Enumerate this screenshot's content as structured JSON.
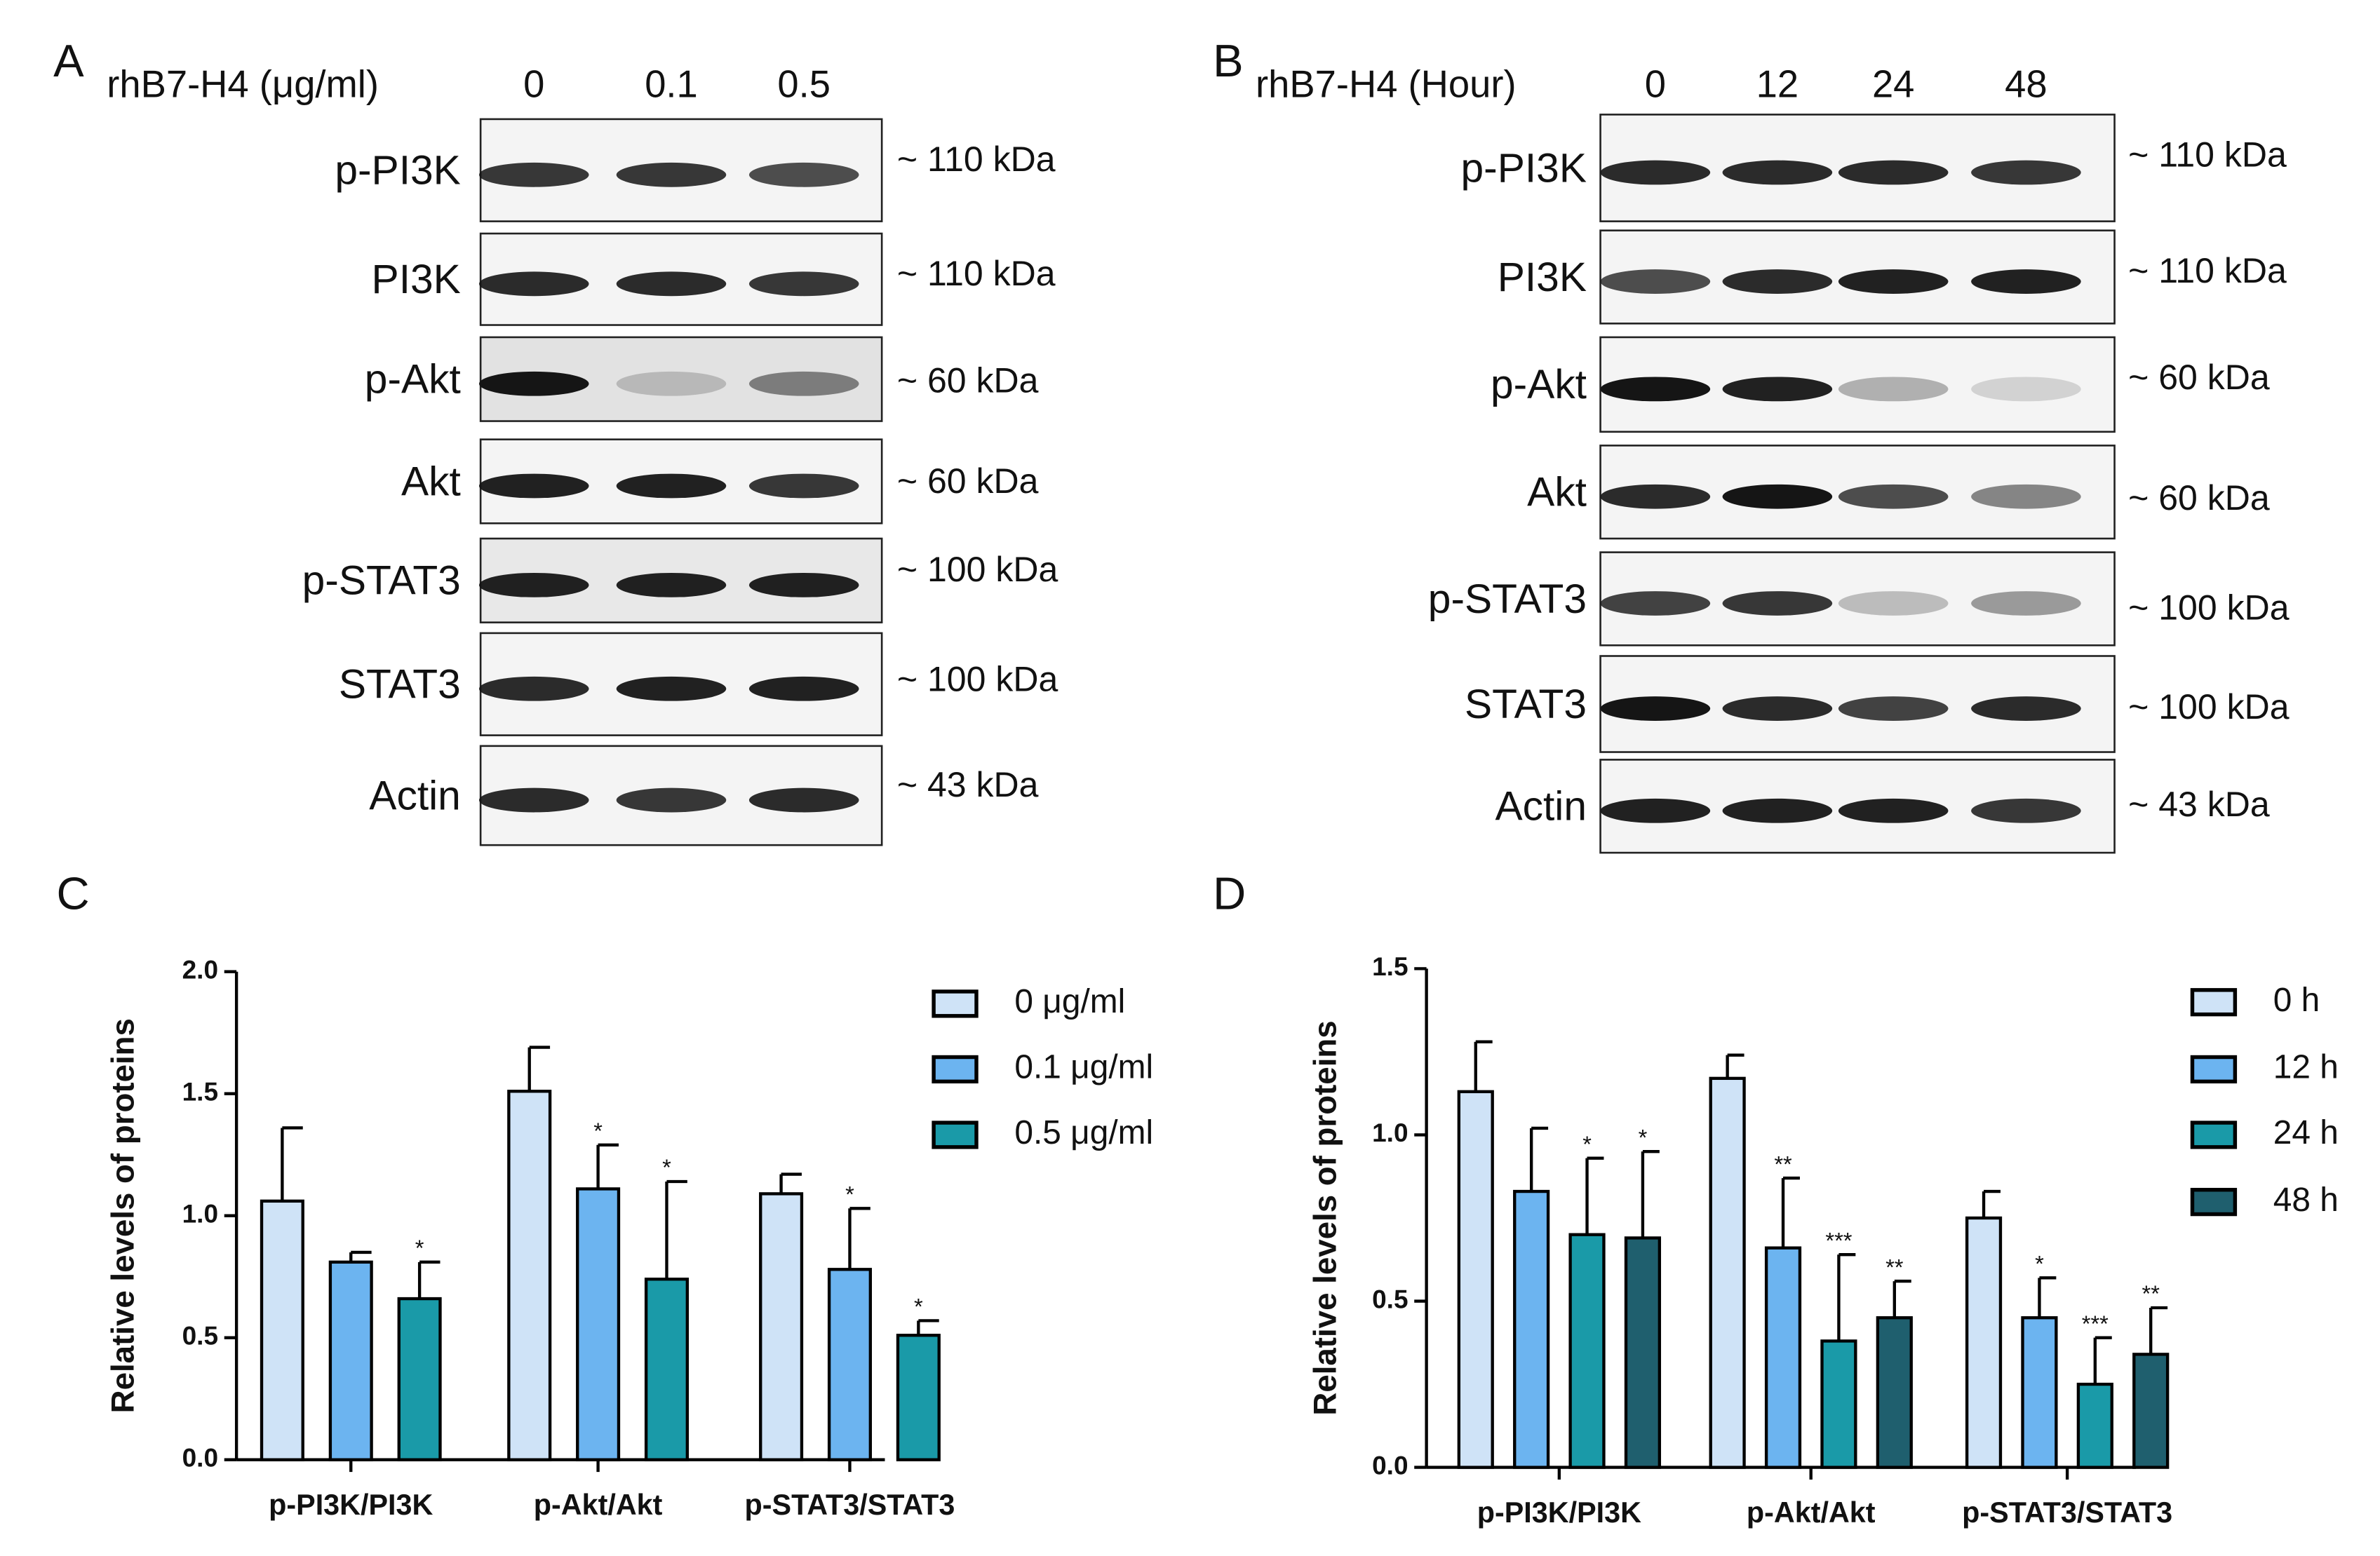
{
  "panels": {
    "a": "A",
    "b": "B",
    "c": "C",
    "d": "D"
  },
  "blot_a": {
    "header": "rhB7-H4 (μg/ml)",
    "lanes": [
      "0",
      "0.1",
      "0.5"
    ],
    "rows": [
      {
        "protein": "p-PI3K",
        "size": "~ 110 kDa"
      },
      {
        "protein": "PI3K",
        "size": "~ 110 kDa"
      },
      {
        "protein": "p-Akt",
        "size": "~ 60 kDa"
      },
      {
        "protein": "Akt",
        "size": "~ 60 kDa"
      },
      {
        "protein": "p-STAT3",
        "size": "~ 100 kDa"
      },
      {
        "protein": "STAT3",
        "size": "~ 100 kDa"
      },
      {
        "protein": "Actin",
        "size": "~ 43 kDa"
      }
    ]
  },
  "blot_b": {
    "header": "rhB7-H4 (Hour)",
    "lanes": [
      "0",
      "12",
      "24",
      "48"
    ],
    "rows": [
      {
        "protein": "p-PI3K",
        "size": "~ 110 kDa"
      },
      {
        "protein": "PI3K",
        "size": "~ 110 kDa"
      },
      {
        "protein": "p-Akt",
        "size": "~ 60 kDa"
      },
      {
        "protein": "Akt",
        "size": "~ 60 kDa"
      },
      {
        "protein": "p-STAT3",
        "size": "~ 100 kDa"
      },
      {
        "protein": "STAT3",
        "size": "~ 100 kDa"
      },
      {
        "protein": "Actin",
        "size": "~ 43 kDa"
      }
    ]
  },
  "chart_data": [
    {
      "type": "bar",
      "y_label": "Relative levels of proteins",
      "categories": [
        "p-PI3K/PI3K",
        "p-Akt/Akt",
        "p-STAT3/STAT3"
      ],
      "ylim": [
        0,
        2
      ],
      "yticks": [
        {
          "value": 0,
          "label": "0.0"
        },
        {
          "value": 0.5,
          "label": "0.5"
        },
        {
          "value": 1,
          "label": "1.0"
        },
        {
          "value": 1.5,
          "label": "1.5"
        },
        {
          "value": 2,
          "label": "2.0"
        }
      ],
      "series": [
        {
          "name": "0 μg/ml",
          "color": "#cfe3f7",
          "values": [
            1.06,
            1.51,
            1.09
          ],
          "errors": [
            0.3,
            0.18,
            0.08
          ],
          "significance": [
            null,
            null,
            null
          ]
        },
        {
          "name": "0.1 μg/ml",
          "color": "#6cb4f0",
          "values": [
            0.81,
            1.11,
            0.78
          ],
          "errors": [
            0.04,
            0.18,
            0.25
          ],
          "significance": [
            null,
            "*",
            "*"
          ]
        },
        {
          "name": "0.5 μg/ml",
          "color": "#1a9aa8",
          "values": [
            0.66,
            0.74,
            0.51
          ],
          "errors": [
            0.15,
            0.4,
            0.06
          ],
          "significance": [
            "*",
            "*",
            "*"
          ]
        }
      ]
    },
    {
      "type": "bar",
      "y_label": "Relative levels of proteins",
      "categories": [
        "p-PI3K/PI3K",
        "p-Akt/Akt",
        "p-STAT3/STAT3"
      ],
      "ylim": [
        0,
        1.5
      ],
      "yticks": [
        {
          "value": 0,
          "label": "0.0"
        },
        {
          "value": 0.5,
          "label": "0.5"
        },
        {
          "value": 1,
          "label": "1.0"
        },
        {
          "value": 1.5,
          "label": "1.5"
        }
      ],
      "series": [
        {
          "name": "0 h",
          "color": "#cfe3f7",
          "values": [
            1.13,
            1.17,
            0.75
          ],
          "errors": [
            0.15,
            0.07,
            0.08
          ],
          "significance": [
            null,
            null,
            null
          ]
        },
        {
          "name": "12 h",
          "color": "#6cb4f0",
          "values": [
            0.83,
            0.66,
            0.45
          ],
          "errors": [
            0.19,
            0.21,
            0.12
          ],
          "significance": [
            null,
            "**",
            "*"
          ]
        },
        {
          "name": "24 h",
          "color": "#1a9aa8",
          "values": [
            0.7,
            0.38,
            0.25
          ],
          "errors": [
            0.23,
            0.26,
            0.14
          ],
          "significance": [
            "*",
            "***",
            "***"
          ]
        },
        {
          "name": "48 h",
          "color": "#1f5f6e",
          "values": [
            0.69,
            0.45,
            0.34
          ],
          "errors": [
            0.26,
            0.11,
            0.14
          ],
          "significance": [
            "*",
            "**",
            "**"
          ]
        }
      ]
    }
  ]
}
